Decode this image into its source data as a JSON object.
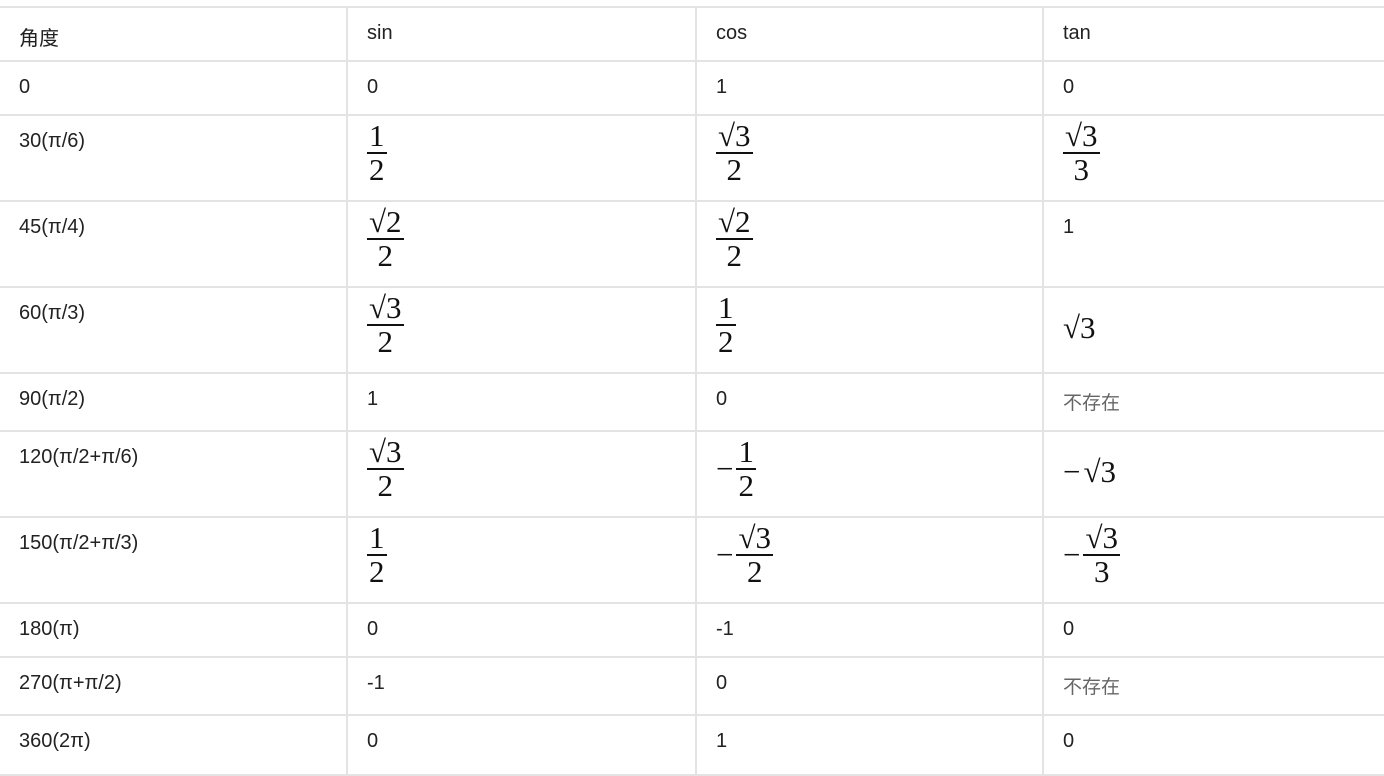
{
  "header": [
    "角度",
    "sin",
    "cos",
    "tan"
  ],
  "rows": [
    {
      "angle": "0",
      "sin": {
        "text": "0"
      },
      "cos": {
        "text": "1"
      },
      "tan": {
        "text": "0"
      }
    },
    {
      "angle": "30(π/6)",
      "sin": {
        "num": "1",
        "den": "2"
      },
      "cos": {
        "num": "√3",
        "den": "2"
      },
      "tan": {
        "num": "√3",
        "den": "3"
      }
    },
    {
      "angle": "45(π/4)",
      "sin": {
        "num": "√2",
        "den": "2"
      },
      "cos": {
        "num": "√2",
        "den": "2"
      },
      "tan": {
        "text": "1"
      }
    },
    {
      "angle": "60(π/3)",
      "sin": {
        "num": "√3",
        "den": "2"
      },
      "cos": {
        "num": "1",
        "den": "2"
      },
      "tan": {
        "radical": "√3"
      }
    },
    {
      "angle": "90(π/2)",
      "sin": {
        "text": "1"
      },
      "cos": {
        "text": "0"
      },
      "tan": {
        "text": "不存在",
        "muted": true
      }
    },
    {
      "angle": "120(π/2+π/6)",
      "sin": {
        "num": "√3",
        "den": "2"
      },
      "cos": {
        "sign": "−",
        "num": "1",
        "den": "2"
      },
      "tan": {
        "sign": "−",
        "radical": "√3"
      }
    },
    {
      "angle": "150(π/2+π/3)",
      "sin": {
        "num": "1",
        "den": "2"
      },
      "cos": {
        "sign": "−",
        "num": "√3",
        "den": "2"
      },
      "tan": {
        "sign": "−",
        "num": "√3",
        "den": "3"
      }
    },
    {
      "angle": "180(π)",
      "sin": {
        "text": "0"
      },
      "cos": {
        "text": "-1"
      },
      "tan": {
        "text": "0"
      }
    },
    {
      "angle": "270(π+π/2)",
      "sin": {
        "text": "-1"
      },
      "cos": {
        "text": "0"
      },
      "tan": {
        "text": "不存在",
        "muted": true
      }
    },
    {
      "angle": "360(2π)",
      "sin": {
        "text": "0"
      },
      "cos": {
        "text": "1"
      },
      "tan": {
        "text": "0"
      }
    }
  ]
}
